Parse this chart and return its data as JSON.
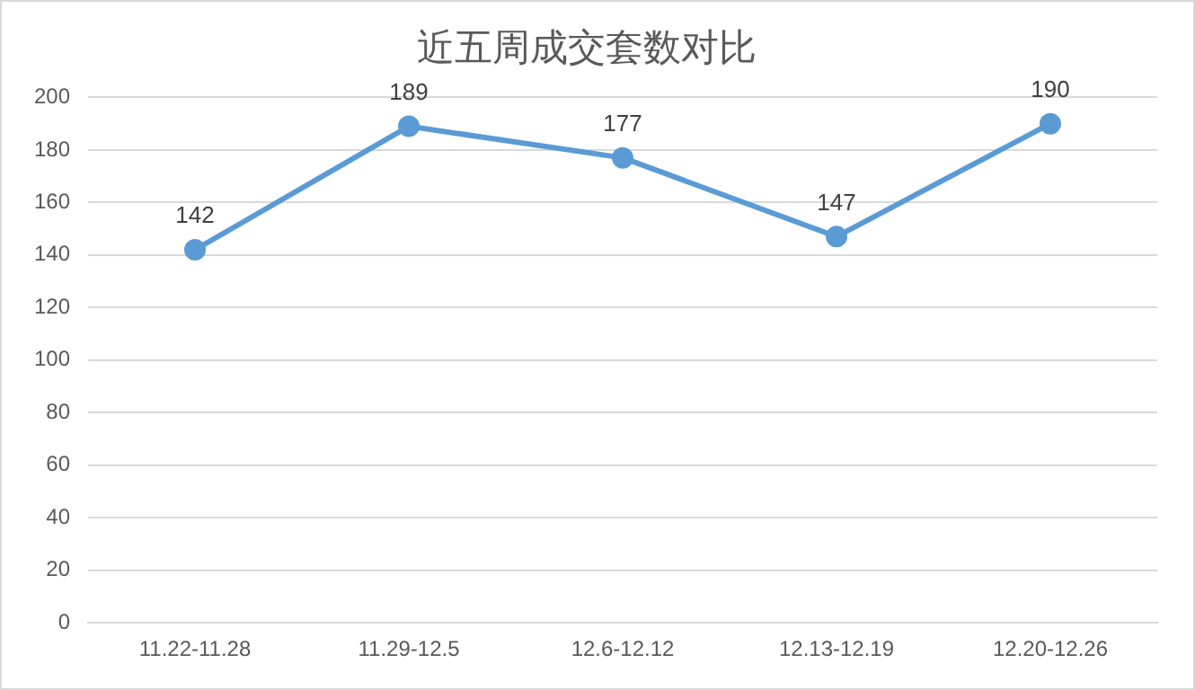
{
  "chart_data": {
    "type": "line",
    "title": "近五周成交套数对比",
    "categories": [
      "11.22-11.28",
      "11.29-12.5",
      "12.6-12.12",
      "12.13-12.19",
      "12.20-12.26"
    ],
    "series": [
      {
        "color": "#5b9bd5",
        "values": [
          142,
          189,
          177,
          147,
          190
        ]
      }
    ],
    "ylim": [
      0,
      200
    ],
    "yticks": [
      0,
      20,
      40,
      60,
      80,
      100,
      120,
      140,
      160,
      180,
      200
    ],
    "grid": "y",
    "legend": false,
    "marker": "circle",
    "line_style": "solid",
    "data_labels": true
  }
}
